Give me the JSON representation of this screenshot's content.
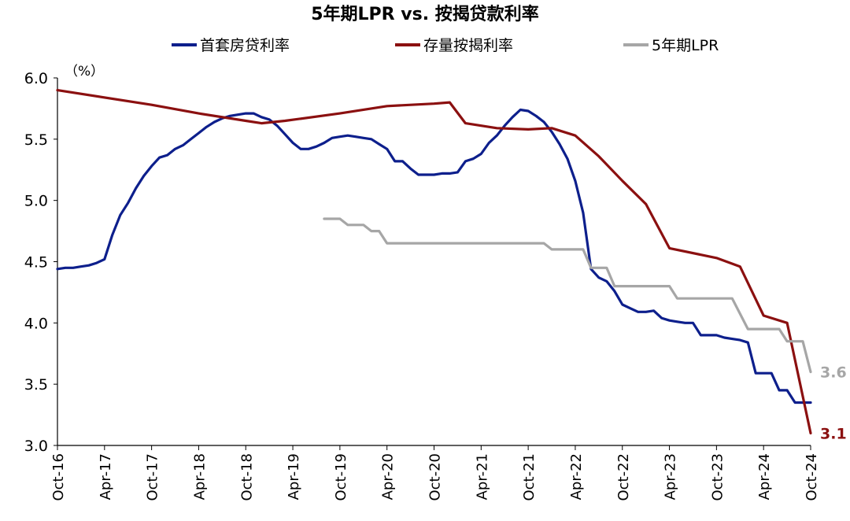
{
  "chart_data": {
    "type": "line",
    "title": "5年期LPR vs. 按揭贷款利率",
    "unit_label": "（%）",
    "ylim": [
      3.0,
      6.0
    ],
    "y_ticks": [
      "3.0",
      "3.5",
      "4.0",
      "4.5",
      "5.0",
      "5.5",
      "6.0"
    ],
    "x_tick_labels": [
      "Oct-16",
      "Apr-17",
      "Oct-17",
      "Apr-18",
      "Oct-18",
      "Apr-19",
      "Oct-19",
      "Apr-20",
      "Oct-20",
      "Apr-21",
      "Oct-21",
      "Apr-22",
      "Oct-22",
      "Apr-23",
      "Oct-23",
      "Apr-24",
      "Oct-24"
    ],
    "x_unit": "month",
    "x_start": "Oct-16",
    "x_end": "Oct-24",
    "grid": false,
    "legend_position": "top",
    "series": [
      {
        "name": "首套房贷利率",
        "color": "#0d1f8c",
        "points": [
          [
            "Oct-16",
            4.44
          ],
          [
            "Nov-16",
            4.45
          ],
          [
            "Dec-16",
            4.45
          ],
          [
            "Jan-17",
            4.46
          ],
          [
            "Feb-17",
            4.47
          ],
          [
            "Mar-17",
            4.49
          ],
          [
            "Apr-17",
            4.52
          ],
          [
            "May-17",
            4.72
          ],
          [
            "Jun-17",
            4.88
          ],
          [
            "Jul-17",
            4.98
          ],
          [
            "Aug-17",
            5.1
          ],
          [
            "Sep-17",
            5.2
          ],
          [
            "Oct-17",
            5.28
          ],
          [
            "Nov-17",
            5.35
          ],
          [
            "Dec-17",
            5.37
          ],
          [
            "Jan-18",
            5.42
          ],
          [
            "Feb-18",
            5.45
          ],
          [
            "Mar-18",
            5.5
          ],
          [
            "Apr-18",
            5.55
          ],
          [
            "May-18",
            5.6
          ],
          [
            "Jun-18",
            5.64
          ],
          [
            "Jul-18",
            5.67
          ],
          [
            "Aug-18",
            5.69
          ],
          [
            "Sep-18",
            5.7
          ],
          [
            "Oct-18",
            5.71
          ],
          [
            "Nov-18",
            5.71
          ],
          [
            "Dec-18",
            5.68
          ],
          [
            "Jan-19",
            5.66
          ],
          [
            "Feb-19",
            5.61
          ],
          [
            "Mar-19",
            5.54
          ],
          [
            "Apr-19",
            5.47
          ],
          [
            "May-19",
            5.42
          ],
          [
            "Jun-19",
            5.42
          ],
          [
            "Jul-19",
            5.44
          ],
          [
            "Aug-19",
            5.47
          ],
          [
            "Sep-19",
            5.51
          ],
          [
            "Oct-19",
            5.52
          ],
          [
            "Nov-19",
            5.53
          ],
          [
            "Dec-19",
            5.52
          ],
          [
            "Jan-20",
            5.51
          ],
          [
            "Feb-20",
            5.5
          ],
          [
            "Mar-20",
            5.46
          ],
          [
            "Apr-20",
            5.42
          ],
          [
            "May-20",
            5.32
          ],
          [
            "Jun-20",
            5.32
          ],
          [
            "Jul-20",
            5.26
          ],
          [
            "Aug-20",
            5.21
          ],
          [
            "Sep-20",
            5.21
          ],
          [
            "Oct-20",
            5.21
          ],
          [
            "Nov-20",
            5.22
          ],
          [
            "Dec-20",
            5.22
          ],
          [
            "Jan-21",
            5.23
          ],
          [
            "Feb-21",
            5.32
          ],
          [
            "Mar-21",
            5.34
          ],
          [
            "Apr-21",
            5.38
          ],
          [
            "May-21",
            5.47
          ],
          [
            "Jun-21",
            5.53
          ],
          [
            "Jul-21",
            5.61
          ],
          [
            "Aug-21",
            5.68
          ],
          [
            "Sep-21",
            5.74
          ],
          [
            "Oct-21",
            5.73
          ],
          [
            "Nov-21",
            5.69
          ],
          [
            "Dec-21",
            5.64
          ],
          [
            "Jan-22",
            5.56
          ],
          [
            "Feb-22",
            5.46
          ],
          [
            "Mar-22",
            5.34
          ],
          [
            "Apr-22",
            5.16
          ],
          [
            "May-22",
            4.9
          ],
          [
            "Jun-22",
            4.44
          ],
          [
            "Jul-22",
            4.37
          ],
          [
            "Aug-22",
            4.34
          ],
          [
            "Sep-22",
            4.26
          ],
          [
            "Oct-22",
            4.15
          ],
          [
            "Nov-22",
            4.12
          ],
          [
            "Dec-22",
            4.09
          ],
          [
            "Jan-23",
            4.09
          ],
          [
            "Feb-23",
            4.1
          ],
          [
            "Mar-23",
            4.04
          ],
          [
            "Apr-23",
            4.02
          ],
          [
            "May-23",
            4.01
          ],
          [
            "Jun-23",
            4.0
          ],
          [
            "Jul-23",
            4.0
          ],
          [
            "Aug-23",
            3.9
          ],
          [
            "Sep-23",
            3.9
          ],
          [
            "Oct-23",
            3.9
          ],
          [
            "Nov-23",
            3.88
          ],
          [
            "Dec-23",
            3.87
          ],
          [
            "Jan-24",
            3.86
          ],
          [
            "Feb-24",
            3.84
          ],
          [
            "Mar-24",
            3.59
          ],
          [
            "Apr-24",
            3.59
          ],
          [
            "May-24",
            3.59
          ],
          [
            "Jun-24",
            3.45
          ],
          [
            "Jul-24",
            3.45
          ],
          [
            "Aug-24",
            3.35
          ],
          [
            "Sep-24",
            3.35
          ],
          [
            "Oct-24",
            3.35
          ]
        ]
      },
      {
        "name": "存量按揭利率",
        "color": "#8b1010",
        "points": [
          [
            "Oct-16",
            5.9
          ],
          [
            "Oct-17",
            5.78
          ],
          [
            "Apr-18",
            5.71
          ],
          [
            "Oct-18",
            5.65
          ],
          [
            "Dec-18",
            5.63
          ],
          [
            "Mar-19",
            5.65
          ],
          [
            "Oct-19",
            5.71
          ],
          [
            "Apr-20",
            5.77
          ],
          [
            "Oct-20",
            5.79
          ],
          [
            "Dec-20",
            5.8
          ],
          [
            "Feb-21",
            5.63
          ],
          [
            "Jun-21",
            5.59
          ],
          [
            "Oct-21",
            5.58
          ],
          [
            "Jan-22",
            5.59
          ],
          [
            "Apr-22",
            5.53
          ],
          [
            "Jul-22",
            5.36
          ],
          [
            "Oct-22",
            5.16
          ],
          [
            "Jan-23",
            4.97
          ],
          [
            "Apr-23",
            4.61
          ],
          [
            "Oct-23",
            4.53
          ],
          [
            "Jan-24",
            4.46
          ],
          [
            "Apr-24",
            4.06
          ],
          [
            "Jul-24",
            4.0
          ],
          [
            "Oct-24",
            3.1
          ]
        ],
        "end_label": "3.1"
      },
      {
        "name": "5年期LPR",
        "color": "#a6a6a6",
        "points": [
          [
            "Aug-19",
            4.85
          ],
          [
            "Oct-19",
            4.85
          ],
          [
            "Nov-19",
            4.8
          ],
          [
            "Jan-20",
            4.8
          ],
          [
            "Feb-20",
            4.75
          ],
          [
            "Mar-20",
            4.75
          ],
          [
            "Apr-20",
            4.65
          ],
          [
            "Dec-21",
            4.65
          ],
          [
            "Jan-22",
            4.6
          ],
          [
            "May-22",
            4.6
          ],
          [
            "Jun-22",
            4.45
          ],
          [
            "Aug-22",
            4.45
          ],
          [
            "Sep-22",
            4.3
          ],
          [
            "Apr-23",
            4.3
          ],
          [
            "May-23",
            4.2
          ],
          [
            "Dec-23",
            4.2
          ],
          [
            "Feb-24",
            3.95
          ],
          [
            "Jun-24",
            3.95
          ],
          [
            "Jul-24",
            3.85
          ],
          [
            "Sep-24",
            3.85
          ],
          [
            "Oct-24",
            3.6
          ]
        ],
        "end_label": "3.6"
      }
    ]
  }
}
